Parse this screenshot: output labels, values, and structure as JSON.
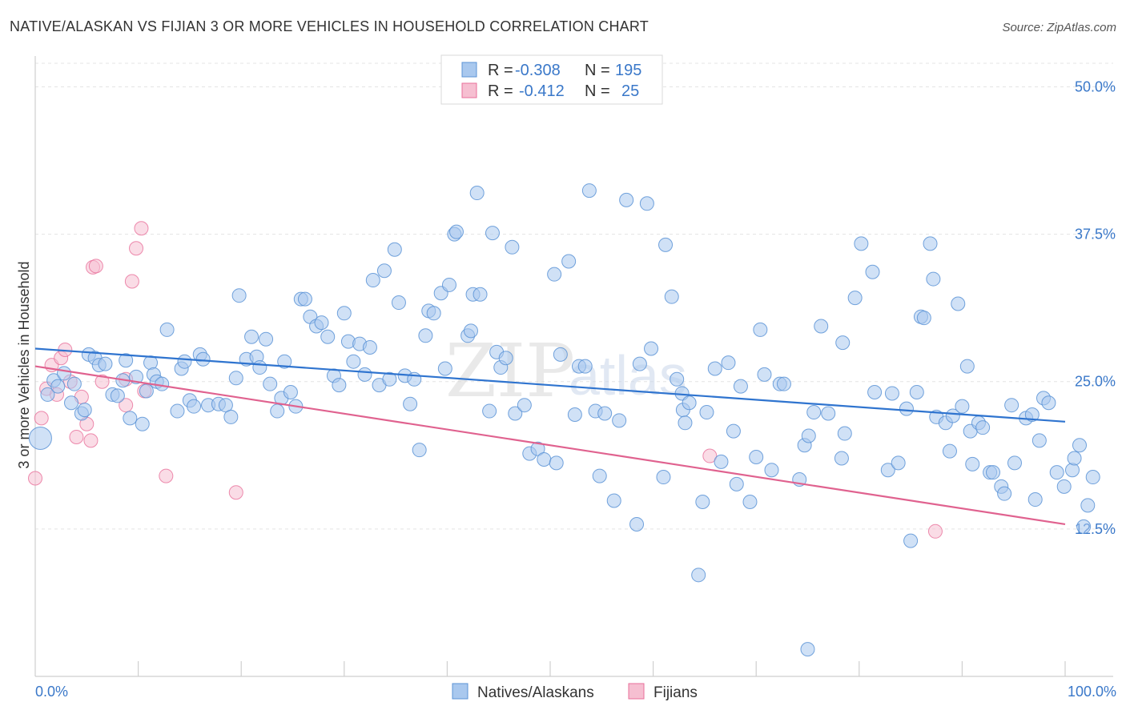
{
  "title": "NATIVE/ALASKAN VS FIJIAN 3 OR MORE VEHICLES IN HOUSEHOLD CORRELATION CHART",
  "source": "Source: ZipAtlas.com",
  "watermark": {
    "zip": "ZIP",
    "atlas": "atlas"
  },
  "colors": {
    "blue": "#5b93d6",
    "blue_fill": "#a9c8ee",
    "pink": "#e86f9a",
    "pink_fill": "#f6bfd1",
    "axis_text": "#3a78c9"
  },
  "legend": {
    "rows": [
      {
        "r_label": "R =",
        "r_value": "-0.308",
        "n_label": "N =",
        "n_value": "195"
      },
      {
        "r_label": "R =",
        "r_value": "-0.412",
        "n_label": "N =",
        "n_value": "25"
      }
    ]
  },
  "bottom_legend": [
    "Natives/Alaskans",
    "Fijians"
  ],
  "chart_data": {
    "type": "scatter",
    "title": "NATIVE/ALASKAN VS FIJIAN 3 OR MORE VEHICLES IN HOUSEHOLD CORRELATION CHART",
    "xlabel": "",
    "ylabel": "3 or more Vehicles in Household",
    "xlim": [
      0,
      100
    ],
    "ylim": [
      0,
      52
    ],
    "x_tick_labels": [
      "0.0%",
      "100.0%"
    ],
    "y_ticks": [
      12.5,
      25.0,
      37.5,
      50.0
    ],
    "y_tick_labels": [
      "12.5%",
      "25.0%",
      "37.5%",
      "50.0%"
    ],
    "grid": true,
    "legend_position": "top-center",
    "series": [
      {
        "name": "Natives/Alaskans",
        "color": "#5b93d6",
        "trend": {
          "x": [
            0,
            100
          ],
          "y": [
            27.8,
            21.6
          ]
        },
        "points": [
          [
            0.5,
            20.2
          ],
          [
            1.2,
            23.9
          ],
          [
            1.8,
            25.1
          ],
          [
            2.2,
            24.6
          ],
          [
            2.8,
            25.7
          ],
          [
            3.5,
            23.2
          ],
          [
            3.8,
            24.8
          ],
          [
            4.5,
            22.3
          ],
          [
            4.8,
            22.6
          ],
          [
            5.2,
            27.3
          ],
          [
            5.8,
            27.0
          ],
          [
            6.2,
            26.4
          ],
          [
            6.8,
            26.5
          ],
          [
            7.5,
            23.9
          ],
          [
            8.0,
            23.8
          ],
          [
            8.5,
            25.1
          ],
          [
            8.8,
            26.8
          ],
          [
            9.2,
            21.9
          ],
          [
            9.8,
            25.4
          ],
          [
            10.4,
            21.4
          ],
          [
            10.8,
            24.2
          ],
          [
            11.2,
            26.6
          ],
          [
            11.5,
            25.6
          ],
          [
            11.8,
            25.0
          ],
          [
            12.3,
            24.8
          ],
          [
            12.8,
            29.4
          ],
          [
            13.8,
            22.5
          ],
          [
            14.2,
            26.1
          ],
          [
            14.5,
            26.7
          ],
          [
            15.0,
            23.4
          ],
          [
            15.4,
            22.9
          ],
          [
            16.0,
            27.3
          ],
          [
            16.3,
            26.9
          ],
          [
            16.8,
            23.0
          ],
          [
            17.8,
            23.1
          ],
          [
            18.5,
            23.0
          ],
          [
            19.0,
            22.0
          ],
          [
            19.5,
            25.3
          ],
          [
            19.8,
            32.3
          ],
          [
            20.5,
            26.9
          ],
          [
            21.0,
            28.8
          ],
          [
            21.5,
            27.1
          ],
          [
            21.8,
            26.2
          ],
          [
            22.4,
            28.6
          ],
          [
            22.8,
            24.8
          ],
          [
            23.5,
            22.5
          ],
          [
            23.9,
            23.6
          ],
          [
            24.2,
            26.7
          ],
          [
            24.8,
            24.1
          ],
          [
            25.3,
            22.9
          ],
          [
            25.8,
            32.0
          ],
          [
            26.2,
            32.0
          ],
          [
            26.7,
            30.5
          ],
          [
            27.3,
            29.7
          ],
          [
            27.8,
            30.0
          ],
          [
            28.4,
            28.8
          ],
          [
            29.0,
            25.5
          ],
          [
            29.5,
            24.7
          ],
          [
            30.0,
            30.8
          ],
          [
            30.4,
            28.4
          ],
          [
            30.9,
            26.7
          ],
          [
            31.5,
            28.2
          ],
          [
            32.0,
            25.6
          ],
          [
            32.5,
            27.9
          ],
          [
            32.8,
            33.6
          ],
          [
            33.4,
            24.7
          ],
          [
            33.9,
            34.4
          ],
          [
            34.4,
            25.2
          ],
          [
            34.9,
            36.2
          ],
          [
            35.3,
            31.7
          ],
          [
            35.9,
            25.5
          ],
          [
            36.4,
            23.1
          ],
          [
            36.8,
            25.2
          ],
          [
            37.3,
            19.2
          ],
          [
            37.9,
            28.9
          ],
          [
            38.2,
            31.0
          ],
          [
            38.7,
            30.8
          ],
          [
            39.4,
            32.5
          ],
          [
            39.8,
            26.1
          ],
          [
            40.2,
            33.2
          ],
          [
            40.7,
            37.5
          ],
          [
            40.9,
            37.7
          ],
          [
            42.0,
            28.9
          ],
          [
            42.3,
            29.3
          ],
          [
            42.5,
            32.4
          ],
          [
            42.9,
            41.0
          ],
          [
            43.2,
            32.4
          ],
          [
            44.1,
            22.5
          ],
          [
            44.4,
            37.6
          ],
          [
            44.8,
            27.5
          ],
          [
            45.2,
            26.2
          ],
          [
            45.7,
            27.0
          ],
          [
            46.3,
            36.4
          ],
          [
            46.6,
            22.3
          ],
          [
            47.5,
            23.0
          ],
          [
            48.0,
            18.9
          ],
          [
            48.8,
            19.3
          ],
          [
            49.4,
            18.4
          ],
          [
            50.4,
            34.1
          ],
          [
            50.6,
            18.1
          ],
          [
            51.0,
            27.3
          ],
          [
            51.8,
            35.2
          ],
          [
            52.4,
            22.2
          ],
          [
            52.8,
            26.3
          ],
          [
            53.4,
            26.3
          ],
          [
            53.8,
            41.2
          ],
          [
            54.4,
            22.5
          ],
          [
            54.8,
            17.0
          ],
          [
            55.3,
            22.3
          ],
          [
            56.2,
            14.9
          ],
          [
            56.7,
            21.7
          ],
          [
            57.4,
            40.4
          ],
          [
            58.4,
            12.9
          ],
          [
            58.7,
            26.5
          ],
          [
            59.4,
            40.1
          ],
          [
            59.8,
            27.8
          ],
          [
            61.0,
            16.9
          ],
          [
            61.2,
            36.6
          ],
          [
            61.8,
            32.2
          ],
          [
            62.3,
            25.2
          ],
          [
            62.8,
            24.0
          ],
          [
            62.9,
            22.6
          ],
          [
            63.1,
            21.5
          ],
          [
            63.5,
            23.2
          ],
          [
            64.4,
            8.6
          ],
          [
            64.8,
            14.8
          ],
          [
            65.2,
            22.4
          ],
          [
            66.0,
            26.1
          ],
          [
            66.6,
            18.2
          ],
          [
            67.3,
            26.6
          ],
          [
            67.8,
            20.8
          ],
          [
            68.1,
            16.3
          ],
          [
            68.5,
            24.6
          ],
          [
            69.4,
            14.8
          ],
          [
            70.0,
            18.6
          ],
          [
            70.4,
            29.4
          ],
          [
            70.8,
            25.6
          ],
          [
            71.5,
            17.5
          ],
          [
            72.3,
            24.8
          ],
          [
            72.7,
            24.8
          ],
          [
            74.2,
            16.7
          ],
          [
            74.7,
            19.6
          ],
          [
            75.1,
            20.4
          ],
          [
            75.6,
            22.4
          ],
          [
            76.3,
            29.7
          ],
          [
            77.0,
            22.3
          ],
          [
            78.3,
            18.5
          ],
          [
            78.4,
            28.3
          ],
          [
            78.6,
            20.6
          ],
          [
            79.6,
            32.1
          ],
          [
            80.2,
            36.7
          ],
          [
            81.3,
            34.3
          ],
          [
            81.5,
            24.1
          ],
          [
            82.8,
            17.5
          ],
          [
            83.2,
            24.0
          ],
          [
            83.8,
            18.1
          ],
          [
            84.6,
            22.7
          ],
          [
            85.6,
            24.1
          ],
          [
            86.0,
            30.5
          ],
          [
            86.3,
            30.4
          ],
          [
            86.9,
            36.7
          ],
          [
            87.2,
            33.7
          ],
          [
            87.5,
            22.0
          ],
          [
            88.4,
            21.5
          ],
          [
            88.8,
            19.1
          ],
          [
            89.1,
            22.1
          ],
          [
            89.6,
            31.6
          ],
          [
            90.0,
            22.9
          ],
          [
            90.5,
            26.3
          ],
          [
            90.8,
            20.8
          ],
          [
            91.0,
            18.0
          ],
          [
            91.6,
            21.5
          ],
          [
            92.0,
            21.1
          ],
          [
            92.7,
            17.3
          ],
          [
            93.0,
            17.3
          ],
          [
            93.8,
            16.1
          ],
          [
            94.1,
            15.5
          ],
          [
            94.8,
            23.0
          ],
          [
            95.1,
            18.1
          ],
          [
            96.2,
            21.9
          ],
          [
            96.8,
            22.2
          ],
          [
            97.1,
            15.0
          ],
          [
            97.5,
            20.0
          ],
          [
            97.9,
            23.6
          ],
          [
            98.4,
            23.2
          ],
          [
            99.2,
            17.3
          ],
          [
            99.9,
            16.1
          ],
          [
            100.7,
            17.5
          ],
          [
            100.9,
            18.5
          ],
          [
            101.4,
            19.6
          ],
          [
            101.8,
            12.7
          ],
          [
            102.2,
            14.5
          ],
          [
            102.7,
            16.9
          ],
          [
            75.0,
            2.3
          ],
          [
            85.0,
            11.5
          ]
        ]
      },
      {
        "name": "Fijians",
        "color": "#e86f9a",
        "trend": {
          "x": [
            0,
            100
          ],
          "y": [
            26.3,
            12.9
          ]
        },
        "points": [
          [
            0.0,
            16.8
          ],
          [
            0.6,
            21.9
          ],
          [
            1.1,
            24.4
          ],
          [
            1.6,
            26.4
          ],
          [
            2.1,
            23.9
          ],
          [
            2.5,
            27.0
          ],
          [
            2.9,
            27.7
          ],
          [
            3.4,
            25.0
          ],
          [
            4.0,
            20.3
          ],
          [
            4.5,
            23.7
          ],
          [
            5.0,
            21.4
          ],
          [
            5.4,
            20.0
          ],
          [
            5.6,
            34.7
          ],
          [
            5.9,
            34.8
          ],
          [
            6.5,
            25.0
          ],
          [
            8.8,
            23.0
          ],
          [
            8.8,
            25.2
          ],
          [
            9.4,
            33.5
          ],
          [
            9.8,
            36.3
          ],
          [
            10.3,
            38.0
          ],
          [
            10.6,
            24.2
          ],
          [
            12.7,
            17.0
          ],
          [
            19.5,
            15.6
          ],
          [
            65.5,
            18.7
          ],
          [
            87.4,
            12.3
          ]
        ]
      }
    ]
  }
}
